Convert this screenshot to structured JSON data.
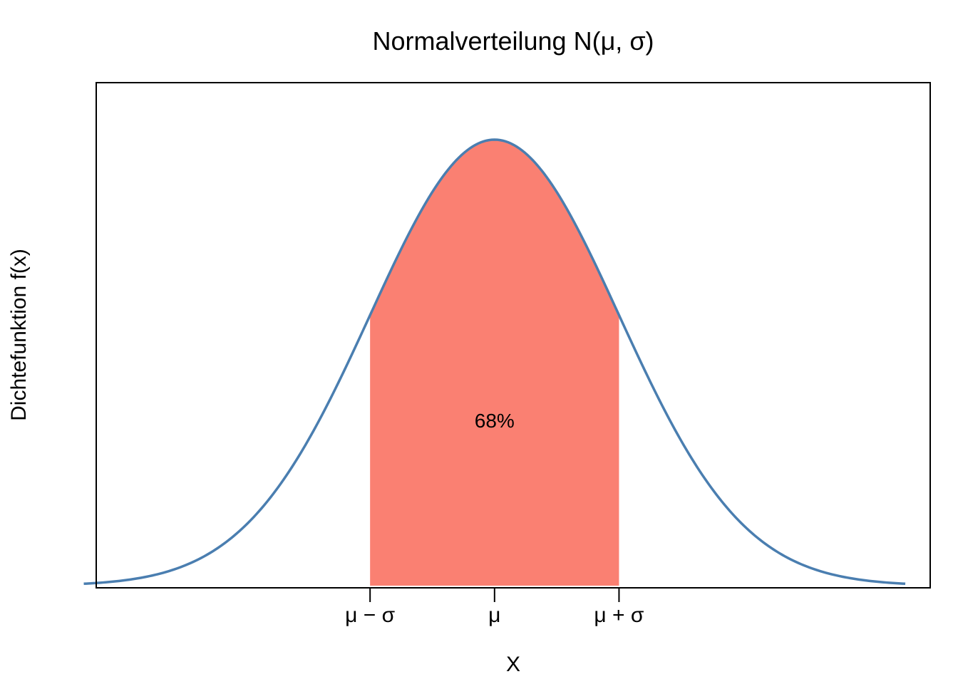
{
  "chart_data": {
    "type": "area",
    "title": "Normalverteilung N(μ, σ)",
    "xlabel": "X",
    "ylabel": "Dichtefunktion f(x)",
    "xlim": [
      -3.2,
      3.5
    ],
    "x_range": [
      -3.3,
      3.3
    ],
    "distribution": {
      "name": "normal",
      "mean": 0,
      "sd": 1
    },
    "shaded_region": {
      "from": -1,
      "to": 1,
      "label": "68%",
      "color": "#FA8072"
    },
    "curve_color": "#4A7EB0",
    "ticks": [
      {
        "x": -1,
        "label": "μ − σ"
      },
      {
        "x": 0,
        "label": "μ"
      },
      {
        "x": 1,
        "label": "μ + σ"
      }
    ],
    "grid": false,
    "legend": "none"
  }
}
